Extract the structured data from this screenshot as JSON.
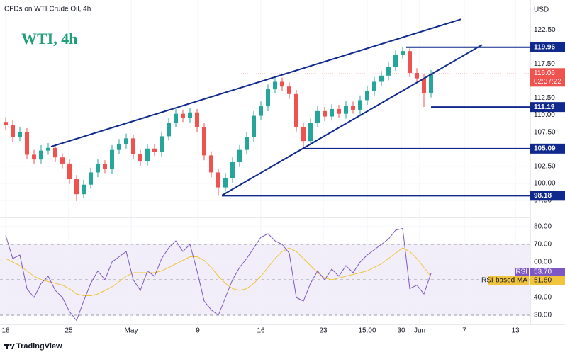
{
  "header": {
    "symbol": "CFDs on WTI Crude Oil, 4h",
    "title": "WTI, 4h",
    "currency": "USD"
  },
  "footer": {
    "brand": "TradingView"
  },
  "chart_data": [
    {
      "type": "candlestick",
      "open": [
        109.0,
        108.5,
        106.8,
        107.5,
        104.2,
        103.5,
        104.8,
        105.2,
        103.8,
        102.9,
        100.6,
        98.4,
        99.8,
        101.6,
        102.8,
        102.1,
        104.9,
        105.8,
        106.6,
        104.3,
        103.2,
        105.1,
        104.6,
        106.9,
        108.9,
        110.2,
        109.6,
        110.4,
        108.2,
        104.1,
        101.6,
        99.4,
        100.8,
        103.1,
        104.9,
        106.8,
        109.9,
        111.3,
        113.8,
        114.9,
        114.2,
        113.1,
        108.3,
        106.2,
        108.9,
        110.6,
        109.8,
        110.9,
        110.2,
        111.4,
        110.8,
        112.2,
        113.6,
        114.9,
        115.8,
        117.1,
        118.9,
        119.4,
        116.2,
        115.4,
        113.2
      ],
      "high": [
        109.7,
        109.2,
        108.2,
        108.1,
        104.9,
        105.6,
        105.9,
        105.8,
        104.4,
        103.5,
        101.2,
        100.5,
        102.3,
        103.5,
        103.4,
        105.6,
        106.5,
        107.3,
        107.1,
        104.9,
        105.8,
        105.7,
        107.6,
        109.6,
        110.9,
        110.8,
        111.1,
        110.9,
        108.8,
        104.7,
        102.2,
        101.5,
        103.8,
        105.6,
        107.5,
        110.6,
        112.0,
        114.5,
        115.6,
        115.5,
        114.8,
        113.7,
        108.9,
        109.5,
        111.3,
        111.2,
        111.6,
        111.5,
        112.1,
        112.0,
        112.9,
        114.3,
        115.6,
        116.5,
        117.8,
        119.5,
        119.96,
        119.8,
        116.9,
        116.0,
        116.6
      ],
      "low": [
        107.8,
        106.1,
        106.2,
        103.5,
        102.8,
        102.9,
        104.2,
        103.1,
        102.2,
        99.9,
        97.4,
        97.8,
        99.2,
        100.9,
        101.5,
        101.4,
        104.3,
        105.1,
        103.6,
        102.5,
        102.6,
        104.0,
        103.9,
        106.3,
        108.2,
        109.0,
        108.9,
        107.5,
        103.4,
        100.9,
        98.18,
        98.8,
        100.1,
        102.4,
        104.3,
        106.1,
        109.3,
        110.6,
        113.2,
        113.6,
        112.4,
        107.6,
        105.09,
        105.6,
        108.3,
        109.1,
        109.2,
        109.6,
        109.5,
        110.2,
        110.1,
        111.5,
        112.9,
        114.3,
        115.1,
        116.5,
        118.3,
        115.6,
        114.7,
        111.19,
        112.6
      ],
      "close": [
        108.5,
        106.8,
        107.5,
        104.2,
        103.5,
        104.8,
        105.2,
        103.8,
        102.9,
        100.6,
        98.4,
        99.8,
        101.6,
        102.8,
        102.1,
        104.9,
        105.8,
        106.6,
        104.3,
        103.2,
        105.1,
        104.6,
        106.9,
        108.9,
        110.2,
        109.6,
        110.4,
        108.2,
        104.1,
        101.6,
        99.4,
        100.8,
        103.1,
        104.9,
        106.8,
        109.9,
        111.3,
        113.8,
        114.9,
        114.2,
        113.1,
        108.3,
        106.2,
        108.9,
        110.6,
        109.8,
        110.9,
        110.2,
        111.4,
        110.8,
        112.2,
        113.6,
        114.9,
        115.8,
        117.1,
        118.9,
        119.4,
        116.2,
        115.4,
        113.2,
        116.06
      ],
      "up_color": "#26a69a",
      "down_color": "#ef5350",
      "xlim": [
        -0.8,
        74
      ],
      "ylim": [
        95.2,
        126.9
      ],
      "yticks": [
        {
          "value": 97.5,
          "label": "97.50"
        },
        {
          "value": 100,
          "label": "100.00"
        },
        {
          "value": 102.5,
          "label": "102.50"
        },
        {
          "value": 107.5,
          "label": "107.50"
        },
        {
          "value": 110,
          "label": "110.00"
        },
        {
          "value": 112.5,
          "label": "112.50"
        },
        {
          "value": 117.5,
          "label": "117.50"
        },
        {
          "value": 122.5,
          "label": "122.50"
        }
      ],
      "last_price": 116.06,
      "countdown": "02:37:22",
      "last_color": "#ef5350",
      "line_color": "#0f2a8c",
      "levels": [
        {
          "value": 119.96,
          "from": 56.5
        },
        {
          "value": 111.19,
          "from": 60
        },
        {
          "value": 105.09,
          "from": 42
        },
        {
          "value": 98.18,
          "from": 30.5
        }
      ],
      "trendlines": [
        {
          "x": [
            6.4,
            64.2
          ],
          "y": [
            105.38,
            124.06
          ]
        },
        {
          "x": [
            30.5,
            67.2
          ],
          "y": [
            98.23,
            120.32
          ]
        }
      ]
    },
    {
      "type": "line",
      "series": [
        {
          "name": "RSI",
          "color": "#7e57c2",
          "values": [
            75,
            62,
            64,
            45,
            40,
            48,
            52,
            44,
            40,
            32,
            27,
            38,
            48,
            55,
            50,
            60,
            63,
            66,
            50,
            44,
            55,
            52,
            62,
            68,
            72,
            66,
            70,
            55,
            38,
            33,
            30,
            40,
            50,
            57,
            62,
            68,
            74,
            76,
            72,
            70,
            65,
            40,
            38,
            48,
            55,
            50,
            56,
            52,
            58,
            54,
            60,
            64,
            67,
            70,
            73,
            78,
            79,
            45,
            47,
            42,
            53.7
          ]
        },
        {
          "name": "RSI-based MA",
          "color": "#f0c43c",
          "values": [
            62,
            60,
            58,
            55,
            52,
            50,
            49,
            48,
            47,
            45,
            42,
            41,
            41,
            42,
            44,
            46,
            49,
            52,
            54,
            54,
            54,
            54,
            55,
            57,
            59,
            61,
            63,
            63,
            61,
            57,
            52,
            48,
            45,
            44,
            45,
            48,
            52,
            57,
            62,
            66,
            68,
            66,
            62,
            58,
            54,
            51,
            50,
            51,
            52,
            53,
            54,
            55,
            57,
            59,
            62,
            65,
            68,
            66,
            62,
            57,
            51.8
          ]
        }
      ],
      "last_labels": [
        "53.70",
        "51.80"
      ],
      "xlim": [
        -0.8,
        74
      ],
      "ylim": [
        24.8,
        84.8
      ],
      "yticks": [
        {
          "value": 30,
          "label": "30.00"
        },
        {
          "value": 40,
          "label": "40.00"
        },
        {
          "value": 50,
          "label": "50.00"
        },
        {
          "value": 60,
          "label": "60.00"
        },
        {
          "value": 70,
          "label": "70.00"
        },
        {
          "value": 80,
          "label": "80.00"
        }
      ],
      "band": [
        30,
        70
      ],
      "dashed": [
        70,
        50,
        30
      ],
      "xticks": [
        {
          "value": 0,
          "label": "18"
        },
        {
          "value": 8.9,
          "label": "25"
        },
        {
          "value": 17.7,
          "label": "May"
        },
        {
          "value": 27.1,
          "label": "9"
        },
        {
          "value": 36,
          "label": "16"
        },
        {
          "value": 44.8,
          "label": "23"
        },
        {
          "value": 51,
          "label": "15:00"
        },
        {
          "value": 55.8,
          "label": "30"
        },
        {
          "value": 58.4,
          "label": "Jun"
        },
        {
          "value": 64.7,
          "label": "7"
        },
        {
          "value": 71.9,
          "label": "13"
        }
      ]
    }
  ]
}
